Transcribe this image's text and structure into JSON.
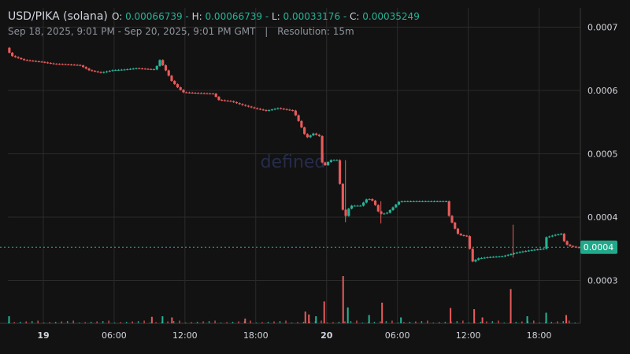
{
  "header": {
    "pair": "USD/PIKA (solana)",
    "open_label": "O:",
    "open": "0.00066739",
    "high_label": "H:",
    "high": "0.00066739",
    "low_label": "L:",
    "low": "0.00033176",
    "close_label": "C:",
    "close": "0.00035249",
    "range": "Sep 18, 2025, 9:01 PM - Sep 20, 2025, 9:01 PM GMT",
    "separator": "|",
    "resolution": "Resolution: 15m"
  },
  "watermark": "defined",
  "price_badge": "0.0004",
  "colors": {
    "background": "#121212",
    "grid": "#2b2b2b",
    "up": "#26b497",
    "down": "#e85b5b",
    "badge": "#1fa98a",
    "text": "#d1d4dc"
  },
  "chart_data": {
    "type": "candlestick",
    "ylim": [
      0.00023,
      0.00073
    ],
    "y_ticks": [
      0.0003,
      0.0004,
      0.0005,
      0.0006,
      0.0007
    ],
    "y_tick_labels": [
      "0.0003",
      "0.0004",
      "0.0005",
      "0.0006",
      "0.0007"
    ],
    "x_tick_hours": [
      3,
      9,
      15,
      21,
      27,
      33,
      39,
      45
    ],
    "x_tick_labels": [
      "19",
      "06:00",
      "12:00",
      "18:00",
      "20",
      "06:00",
      "12:00",
      "18:00"
    ],
    "x_range_hours": [
      0,
      48.5
    ],
    "last_price": 0.0003525,
    "price_path": [
      [
        0,
        0.00066739
      ],
      [
        0.4,
        0.000655
      ],
      [
        1.5,
        0.000648
      ],
      [
        3,
        0.000645
      ],
      [
        4,
        0.000642
      ],
      [
        6.2,
        0.00064
      ],
      [
        7,
        0.000632
      ],
      [
        8,
        0.000628
      ],
      [
        9,
        0.000632
      ],
      [
        10,
        0.000633
      ],
      [
        11,
        0.000635
      ],
      [
        12.6,
        0.000633
      ],
      [
        13,
        0.000648
      ],
      [
        13.4,
        0.000635
      ],
      [
        14,
        0.000615
      ],
      [
        14.5,
        0.000605
      ],
      [
        15,
        0.000597
      ],
      [
        16,
        0.000596
      ],
      [
        17.5,
        0.000595
      ],
      [
        18,
        0.000585
      ],
      [
        19,
        0.000583
      ],
      [
        20,
        0.000577
      ],
      [
        21,
        0.000572
      ],
      [
        22,
        0.000568
      ],
      [
        23,
        0.000572
      ],
      [
        24.3,
        0.000568
      ],
      [
        24.8,
        0.00055
      ],
      [
        25.4,
        0.000525
      ],
      [
        26,
        0.000532
      ],
      [
        26.5,
        0.000528
      ],
      [
        26.8,
        0.000478
      ],
      [
        27.4,
        0.00049
      ],
      [
        28,
        0.00049
      ],
      [
        28.3,
        0.000445
      ],
      [
        28.6,
        0.000395
      ],
      [
        29.1,
        0.000418
      ],
      [
        30,
        0.000418
      ],
      [
        30.6,
        0.00043
      ],
      [
        31.1,
        0.000425
      ],
      [
        31.6,
        0.000405
      ],
      [
        32.2,
        0.000406
      ],
      [
        33.3,
        0.000425
      ],
      [
        34,
        0.000425
      ],
      [
        36,
        0.000425
      ],
      [
        37.3,
        0.000425
      ],
      [
        37.5,
        0.000402
      ],
      [
        37.9,
        0.000385
      ],
      [
        38.3,
        0.000372
      ],
      [
        39,
        0.00037
      ],
      [
        39.5,
        0.00033
      ],
      [
        40,
        0.000335
      ],
      [
        41,
        0.000337
      ],
      [
        42,
        0.000338
      ],
      [
        42.8,
        0.000342
      ],
      [
        43.5,
        0.000345
      ],
      [
        44.5,
        0.000348
      ],
      [
        45.5,
        0.00035
      ],
      [
        45.7,
        0.000368
      ],
      [
        46.5,
        0.000372
      ],
      [
        47.1,
        0.000374
      ],
      [
        47.3,
        0.000358
      ],
      [
        47.8,
        0.000354
      ],
      [
        48.4,
        0.000352
      ]
    ],
    "wicks": [
      {
        "x": 42.8,
        "high": 0.000388,
        "low": 0.000336
      },
      {
        "x": 28.6,
        "high": 0.00049,
        "low": 0.000392
      },
      {
        "x": 31.6,
        "high": 0.000425,
        "low": 0.00039
      }
    ],
    "volume_spikes": [
      {
        "x": 28.4,
        "h": 0.8,
        "dir": "down"
      },
      {
        "x": 42.6,
        "h": 0.58,
        "dir": "down"
      },
      {
        "x": 26.8,
        "h": 0.37,
        "dir": "down"
      },
      {
        "x": 31.7,
        "h": 0.35,
        "dir": "down"
      },
      {
        "x": 37.5,
        "h": 0.26,
        "dir": "down"
      },
      {
        "x": 39.5,
        "h": 0.24,
        "dir": "down"
      },
      {
        "x": 28.8,
        "h": 0.27,
        "dir": "up"
      },
      {
        "x": 25.5,
        "h": 0.15,
        "dir": "down"
      },
      {
        "x": 25.2,
        "h": 0.2,
        "dir": "down"
      },
      {
        "x": 0.1,
        "h": 0.12,
        "dir": "up"
      },
      {
        "x": 45.6,
        "h": 0.18,
        "dir": "up"
      },
      {
        "x": 47.3,
        "h": 0.14,
        "dir": "down"
      },
      {
        "x": 13.1,
        "h": 0.12,
        "dir": "up"
      },
      {
        "x": 13.9,
        "h": 0.1,
        "dir": "down"
      },
      {
        "x": 20.1,
        "h": 0.08,
        "dir": "down"
      },
      {
        "x": 33.3,
        "h": 0.1,
        "dir": "up"
      },
      {
        "x": 30.6,
        "h": 0.14,
        "dir": "up"
      },
      {
        "x": 12.2,
        "h": 0.11,
        "dir": "down"
      },
      {
        "x": 26.1,
        "h": 0.12,
        "dir": "up"
      },
      {
        "x": 40.2,
        "h": 0.1,
        "dir": "down"
      },
      {
        "x": 44.0,
        "h": 0.12,
        "dir": "up"
      }
    ]
  }
}
